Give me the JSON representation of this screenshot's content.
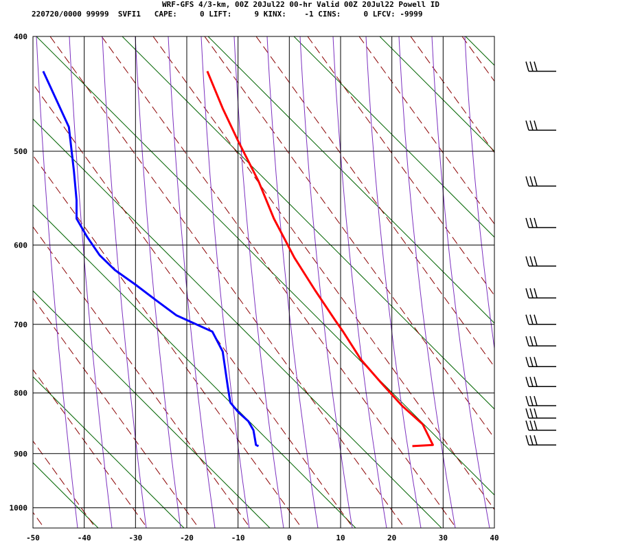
{
  "header": {
    "line1": "WRF-GFS 4/3-km, 00Z 20Jul22 00-hr Valid 00Z 20Jul22 Powell ID",
    "line2": "220720/0000 99999  SVFI1   CAPE:     0 LIFT:     9 KINX:    -1 CINS:     0 LFCV: -9999"
  },
  "chart_data": {
    "type": "line",
    "title": "WRF-GFS 4/3-km, 00Z 20Jul22 00-hr Valid 00Z 20Jul22 Powell ID",
    "xlabel": "",
    "ylabel": "",
    "x_ticks": [
      "-50",
      "-40",
      "-30",
      "-20",
      "-10",
      "0",
      "10",
      "20",
      "30",
      "40"
    ],
    "y_ticks": [
      "400",
      "500",
      "600",
      "700",
      "800",
      "900",
      "1000"
    ],
    "xlim": [
      -50,
      40
    ],
    "ylim_pressure": [
      1040,
      400
    ],
    "y_scale": "log-pressure",
    "grid": true,
    "series": [
      {
        "color": "#ff0000",
        "points": [
          [
            -16,
            428
          ],
          [
            -13,
            460
          ],
          [
            -10,
            490
          ],
          [
            -6,
            530
          ],
          [
            -3,
            570
          ],
          [
            1,
            615
          ],
          [
            5,
            655
          ],
          [
            9,
            695
          ],
          [
            10.5,
            710
          ],
          [
            14,
            750
          ],
          [
            18,
            785
          ],
          [
            22,
            820
          ],
          [
            26,
            850
          ],
          [
            28,
            885
          ],
          [
            24,
            887
          ]
        ]
      },
      {
        "color": "#0000ff",
        "points": [
          [
            -48,
            428
          ],
          [
            -43,
            477
          ],
          [
            -42,
            520
          ],
          [
            -41.5,
            550
          ],
          [
            -41.5,
            570
          ],
          [
            -39.5,
            590
          ],
          [
            -37,
            612
          ],
          [
            -34,
            630
          ],
          [
            -30,
            648
          ],
          [
            -26,
            668
          ],
          [
            -22,
            688
          ],
          [
            -15,
            710
          ],
          [
            -13,
            738
          ],
          [
            -12,
            790
          ],
          [
            -11.5,
            815
          ],
          [
            -10,
            830
          ],
          [
            -8,
            845
          ],
          [
            -7,
            860
          ],
          [
            -6.5,
            885
          ],
          [
            -6,
            887
          ]
        ]
      }
    ],
    "wind_barbs_pressure": [
      428,
      480,
      535,
      580,
      625,
      665,
      700,
      730,
      760,
      790,
      820,
      840,
      860,
      885
    ],
    "colors": {
      "isotherm_grid": "#000000",
      "dry_adiabat": "#8b0000",
      "moist_adiabat": "#7b2fbf",
      "mixing_ratio": "#006400"
    }
  }
}
